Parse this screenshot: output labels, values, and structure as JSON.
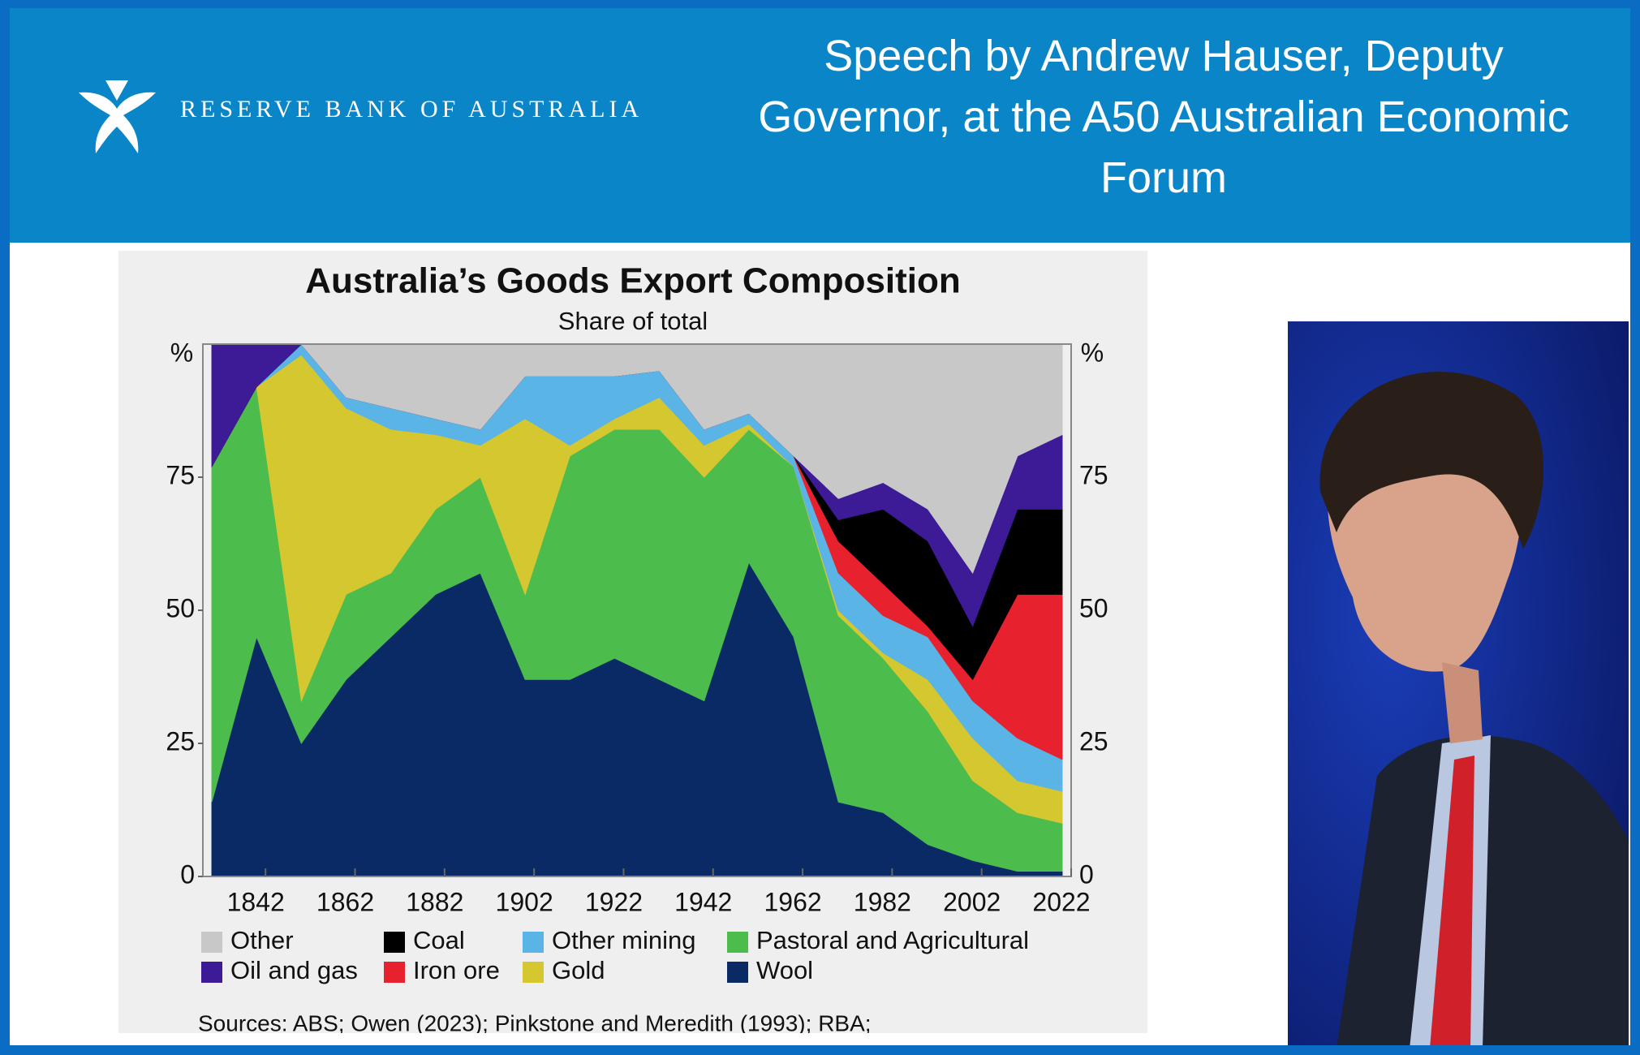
{
  "header": {
    "logo_text": "RESERVE BANK OF AUSTRALIA",
    "title": "Speech by Andrew Hauser, Deputy Governor, at the A50 Australian Economic Forum"
  },
  "chart_data": {
    "type": "stacked_area",
    "title": "Australia’s Goods Export Composition",
    "subtitle": "Share of total",
    "y_unit": "%",
    "x": [
      1830,
      1840,
      1850,
      1860,
      1870,
      1880,
      1890,
      1900,
      1910,
      1920,
      1930,
      1940,
      1950,
      1960,
      1970,
      1980,
      1990,
      2000,
      2010,
      2020
    ],
    "series": [
      {
        "name": "Wool",
        "color": "#0a2a66",
        "values": [
          14,
          45,
          25,
          37,
          45,
          53,
          57,
          37,
          37,
          41,
          37,
          33,
          59,
          45,
          14,
          12,
          6,
          3,
          1,
          1
        ]
      },
      {
        "name": "Pastoral and Agricultural",
        "color": "#4cbc4c",
        "values": [
          63,
          47,
          8,
          16,
          12,
          16,
          18,
          16,
          42,
          43,
          47,
          42,
          25,
          32,
          35,
          29,
          25,
          15,
          11,
          9
        ]
      },
      {
        "name": "Gold",
        "color": "#d4c730",
        "values": [
          0,
          0,
          65,
          35,
          27,
          14,
          6,
          33,
          2,
          2,
          6,
          6,
          1,
          0,
          1,
          1,
          6,
          8,
          6,
          6
        ]
      },
      {
        "name": "Other mining",
        "color": "#5ab4e5",
        "values": [
          0,
          0,
          2,
          2,
          4,
          3,
          3,
          8,
          13,
          8,
          5,
          3,
          2,
          2,
          7,
          7,
          8,
          7,
          8,
          6
        ]
      },
      {
        "name": "Iron ore",
        "color": "#e8212e",
        "values": [
          0,
          0,
          0,
          0,
          0,
          0,
          0,
          0,
          0,
          0,
          0,
          0,
          0,
          0,
          6,
          6,
          2,
          4,
          27,
          31
        ]
      },
      {
        "name": "Coal",
        "color": "#000000",
        "values": [
          0,
          0,
          0,
          0,
          0,
          0,
          0,
          0,
          0,
          0,
          0,
          0,
          0,
          0,
          4,
          14,
          16,
          10,
          16,
          16
        ]
      },
      {
        "name": "Oil and gas",
        "color": "#3d1a96",
        "values": [
          23,
          8,
          0,
          0,
          0,
          0,
          0,
          0,
          0,
          0,
          0,
          0,
          0,
          0,
          4,
          5,
          6,
          10,
          10,
          14
        ]
      },
      {
        "name": "Other",
        "color": "#c8c8c8",
        "values": [
          0,
          0,
          0,
          10,
          12,
          14,
          16,
          6,
          6,
          6,
          5,
          16,
          13,
          21,
          29,
          26,
          31,
          43,
          21,
          17
        ]
      }
    ],
    "xlim": [
      1828,
      2022
    ],
    "xticks": [
      1842,
      1862,
      1882,
      1902,
      1922,
      1942,
      1962,
      1982,
      2002,
      2022
    ],
    "ylim": [
      0,
      100
    ],
    "yticks": [
      0,
      25,
      50,
      75
    ],
    "source": "Sources: ABS; Owen (2023); Pinkstone and Meredith (1993); RBA;"
  }
}
